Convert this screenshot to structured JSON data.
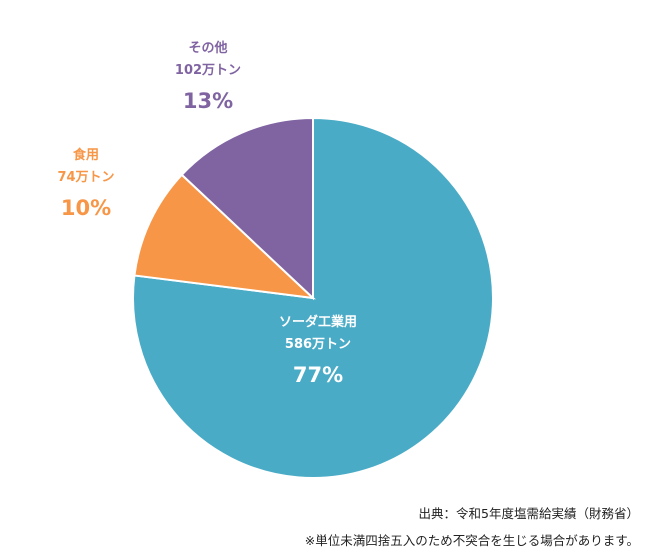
{
  "chart_data": {
    "type": "pie",
    "start_angle_deg": 0,
    "direction": "clockwise",
    "slices": [
      {
        "label": "ソーダ工業用",
        "amount": "586万トン",
        "value": 77,
        "value_label": "77%",
        "color": "#4aabc6",
        "text_color": "#ffffff"
      },
      {
        "label": "食用",
        "amount": "74万トン",
        "value": 10,
        "value_label": "10%",
        "color": "#f79646",
        "text_color": "#f79646"
      },
      {
        "label": "その他",
        "amount": "102万トン",
        "value": 13,
        "value_label": "13%",
        "color": "#8064a2",
        "text_color": "#8064a2"
      }
    ]
  },
  "footer": {
    "source": "出典：令和5年度塩需給実績（財務省）",
    "note": "※単位未満四捨五入のため不突合を生じる場合があります。"
  }
}
